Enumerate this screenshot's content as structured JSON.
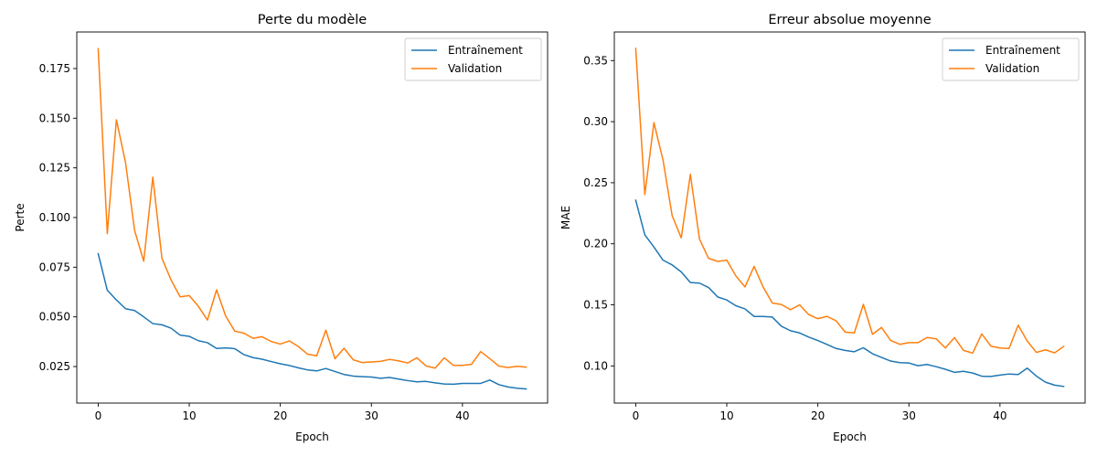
{
  "chart_data": [
    {
      "type": "line",
      "title": "Perte du modèle",
      "xlabel": "Epoch",
      "ylabel": "Perte",
      "xlim": [
        -2.35,
        49.35
      ],
      "ylim": [
        0.0066,
        0.1934
      ],
      "xticks": [
        0,
        10,
        20,
        30,
        40
      ],
      "yticks": [
        0.025,
        0.05,
        0.075,
        0.1,
        0.125,
        0.15,
        0.175
      ],
      "ytick_labels": [
        "0.025",
        "0.050",
        "0.075",
        "0.100",
        "0.125",
        "0.150",
        "0.175"
      ],
      "grid": false,
      "legend_position": "top-right",
      "x": [
        0,
        1,
        2,
        3,
        4,
        5,
        6,
        7,
        8,
        9,
        10,
        11,
        12,
        13,
        14,
        15,
        16,
        17,
        18,
        19,
        20,
        21,
        22,
        23,
        24,
        25,
        26,
        27,
        28,
        29,
        30,
        31,
        32,
        33,
        34,
        35,
        36,
        37,
        38,
        39,
        40,
        41,
        42,
        43,
        44,
        45,
        46,
        47
      ],
      "series": [
        {
          "name": "Entraînement",
          "color": "#1f77b4",
          "values": [
            0.0818,
            0.0634,
            0.0585,
            0.0541,
            0.0532,
            0.05,
            0.0466,
            0.046,
            0.0443,
            0.0408,
            0.0402,
            0.038,
            0.037,
            0.0341,
            0.0344,
            0.034,
            0.031,
            0.0295,
            0.0287,
            0.0275,
            0.0264,
            0.0255,
            0.0243,
            0.0233,
            0.0228,
            0.024,
            0.0225,
            0.021,
            0.0202,
            0.0199,
            0.0197,
            0.0191,
            0.0195,
            0.0187,
            0.0179,
            0.0173,
            0.0175,
            0.0168,
            0.0162,
            0.0161,
            0.0165,
            0.0165,
            0.0165,
            0.0182,
            0.0159,
            0.0147,
            0.0141,
            0.0137
          ]
        },
        {
          "name": "Validation",
          "color": "#ff7f0e",
          "values": [
            0.185,
            0.0919,
            0.1492,
            0.1278,
            0.0935,
            0.078,
            0.1203,
            0.0795,
            0.0686,
            0.0601,
            0.0607,
            0.0553,
            0.0484,
            0.0636,
            0.0504,
            0.0428,
            0.0418,
            0.0392,
            0.04,
            0.0376,
            0.0363,
            0.0379,
            0.035,
            0.0312,
            0.0304,
            0.0433,
            0.0289,
            0.0342,
            0.0284,
            0.027,
            0.0273,
            0.0276,
            0.0286,
            0.0278,
            0.0268,
            0.0294,
            0.0253,
            0.0242,
            0.0294,
            0.0256,
            0.0256,
            0.0261,
            0.0325,
            0.029,
            0.0252,
            0.0245,
            0.0251,
            0.0247
          ]
        }
      ]
    },
    {
      "type": "line",
      "title": "Erreur absolue moyenne",
      "xlabel": "Epoch",
      "ylabel": "MAE",
      "xlim": [
        -2.35,
        49.35
      ],
      "ylim": [
        0.0696,
        0.3734
      ],
      "xticks": [
        0,
        10,
        20,
        30,
        40
      ],
      "yticks": [
        0.1,
        0.15,
        0.2,
        0.25,
        0.3,
        0.35
      ],
      "ytick_labels": [
        "0.10",
        "0.15",
        "0.20",
        "0.25",
        "0.30",
        "0.35"
      ],
      "grid": false,
      "legend_position": "top-right",
      "x": [
        0,
        1,
        2,
        3,
        4,
        5,
        6,
        7,
        8,
        9,
        10,
        11,
        12,
        13,
        14,
        15,
        16,
        17,
        18,
        19,
        20,
        21,
        22,
        23,
        24,
        25,
        26,
        27,
        28,
        29,
        30,
        31,
        32,
        33,
        34,
        35,
        36,
        37,
        38,
        39,
        40,
        41,
        42,
        43,
        44,
        45,
        46,
        47
      ],
      "series": [
        {
          "name": "Entraînement",
          "color": "#1f77b4",
          "values": [
            0.2357,
            0.2073,
            0.1973,
            0.1866,
            0.1827,
            0.177,
            0.1683,
            0.1678,
            0.1642,
            0.1565,
            0.154,
            0.1493,
            0.1467,
            0.1405,
            0.1405,
            0.14,
            0.1325,
            0.1288,
            0.127,
            0.1236,
            0.1208,
            0.1176,
            0.1143,
            0.1127,
            0.1116,
            0.1149,
            0.11,
            0.107,
            0.104,
            0.1027,
            0.1024,
            0.1002,
            0.1012,
            0.0994,
            0.0973,
            0.0948,
            0.0956,
            0.0942,
            0.0916,
            0.0914,
            0.0925,
            0.0934,
            0.093,
            0.0982,
            0.0917,
            0.0867,
            0.0843,
            0.0832
          ]
        },
        {
          "name": "Validation",
          "color": "#ff7f0e",
          "values": [
            0.36,
            0.2403,
            0.2992,
            0.2685,
            0.2231,
            0.2048,
            0.2569,
            0.204,
            0.1881,
            0.1856,
            0.1866,
            0.1737,
            0.1647,
            0.1815,
            0.1645,
            0.1515,
            0.1503,
            0.146,
            0.15,
            0.142,
            0.1387,
            0.1406,
            0.137,
            0.1277,
            0.127,
            0.1504,
            0.1259,
            0.1315,
            0.1208,
            0.1177,
            0.1191,
            0.1191,
            0.1233,
            0.1222,
            0.1147,
            0.1232,
            0.1127,
            0.1105,
            0.1262,
            0.1162,
            0.1147,
            0.1143,
            0.1334,
            0.1203,
            0.1111,
            0.1132,
            0.1107,
            0.116
          ]
        }
      ]
    }
  ]
}
